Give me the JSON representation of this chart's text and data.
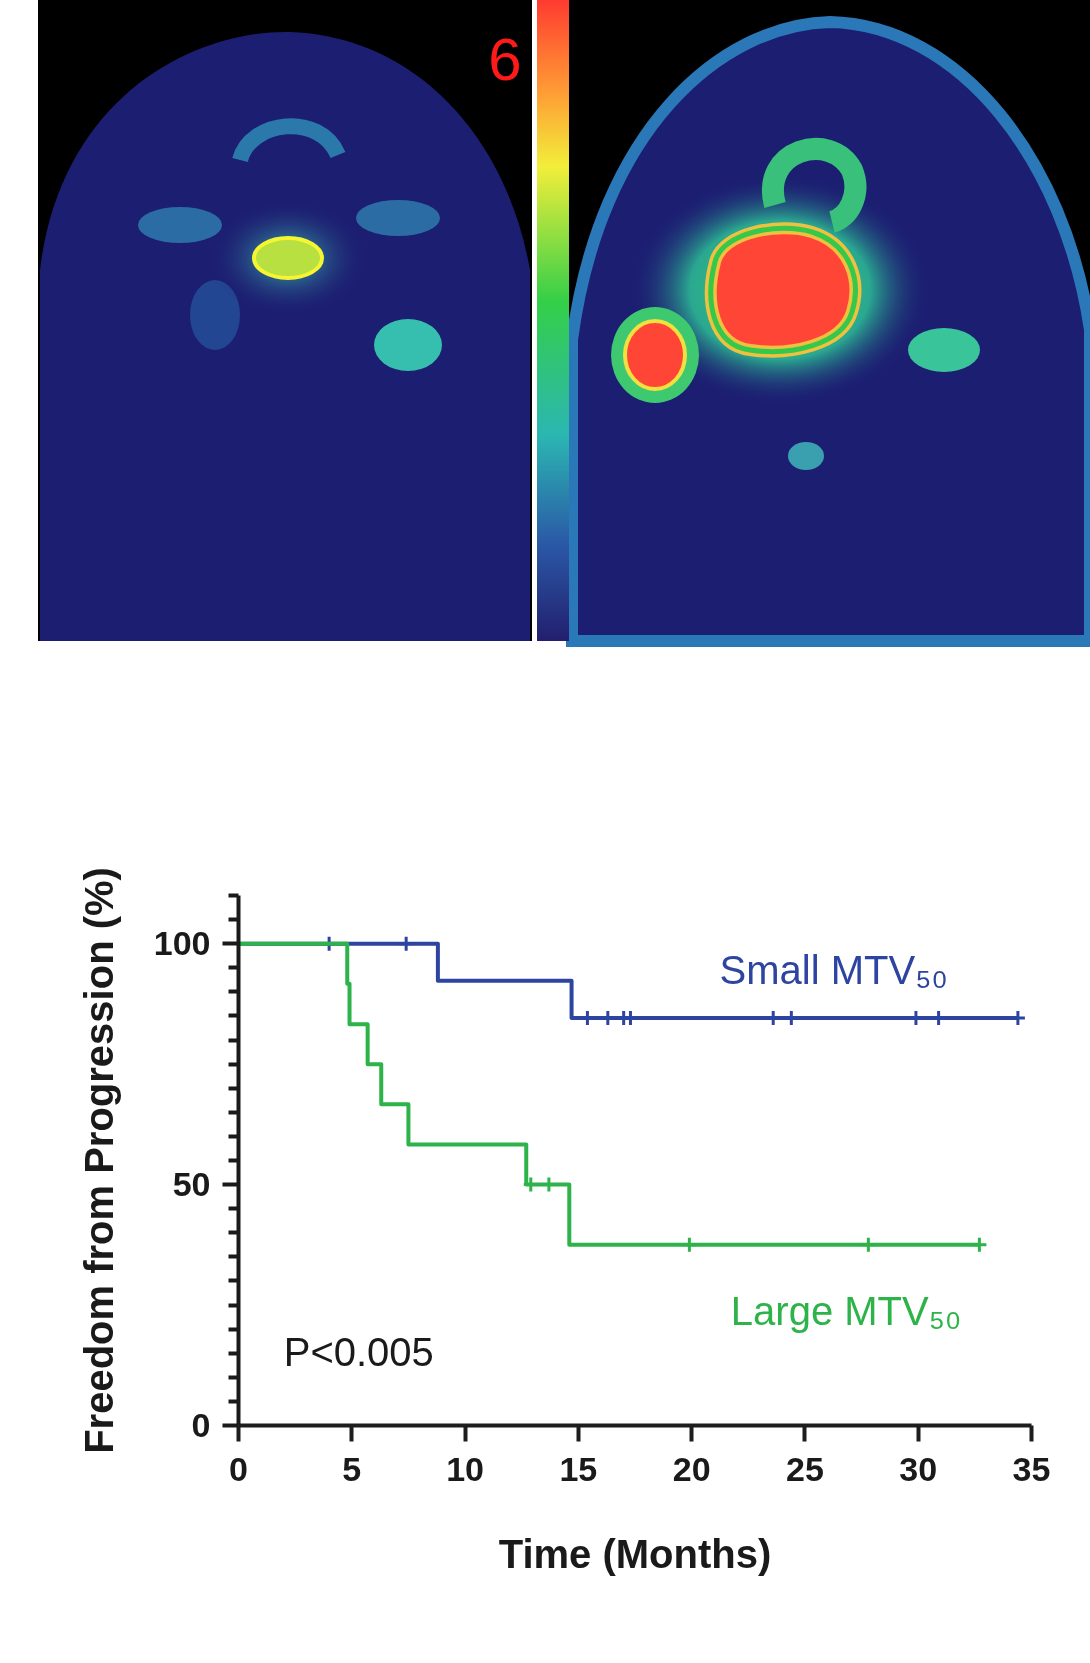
{
  "chart_data": {
    "type": "step",
    "xlabel": "Time (Months)",
    "ylabel": "Freedom from Progression (%)",
    "annotations": [
      "P<0.005",
      "6"
    ],
    "xlim": [
      0,
      35
    ],
    "xticks": [
      0,
      5,
      10,
      15,
      20,
      25,
      30,
      35
    ],
    "ylim": [
      0,
      110
    ],
    "yticks": [
      0,
      {
        "value": 5,
        "label": null
      },
      {
        "value": 10,
        "label": null
      },
      {
        "value": 15,
        "label": null
      },
      {
        "value": 20,
        "label": null
      },
      {
        "value": 25,
        "label": null
      },
      {
        "value": 30,
        "label": null
      },
      {
        "value": 35,
        "label": null
      },
      {
        "value": 40,
        "label": null
      },
      {
        "value": 45,
        "label": null
      },
      50,
      {
        "value": 55,
        "label": null
      },
      {
        "value": 60,
        "label": null
      },
      {
        "value": 65,
        "label": null
      },
      {
        "value": 70,
        "label": null
      },
      {
        "value": 75,
        "label": null
      },
      {
        "value": 80,
        "label": null
      },
      {
        "value": 85,
        "label": null
      },
      {
        "value": 90,
        "label": null
      },
      {
        "value": 95,
        "label": null
      },
      100,
      {
        "value": 105,
        "label": null
      },
      {
        "value": 110,
        "label": null
      }
    ],
    "grid": false,
    "series": [
      {
        "name": "Small MTV₅₀",
        "color": "#2d44a0",
        "x": [
          0,
          8.8,
          14.7,
          34.4
        ],
        "values": [
          100,
          92.3,
          84.6,
          84.6
        ]
      },
      {
        "type": "scatter",
        "marker": "cross",
        "color": "#2d44a0",
        "x": [
          4.0,
          7.4,
          15.4,
          16.3,
          17.0,
          17.3,
          23.6,
          24.4,
          29.9,
          30.9,
          34.4
        ],
        "values": [
          100,
          100,
          84.6,
          84.6,
          84.6,
          84.6,
          84.6,
          84.6,
          84.6,
          84.6,
          84.6
        ]
      },
      {
        "name": "Large MTV₅₀",
        "color": "#2db34a",
        "x": [
          0,
          4.8,
          4.9,
          5.7,
          6.3,
          7.5,
          12.7,
          14.6,
          32.7
        ],
        "values": [
          100,
          91.7,
          83.3,
          75,
          66.7,
          58.3,
          50,
          37.5,
          37.5
        ]
      },
      {
        "type": "scatter",
        "marker": "cross",
        "color": "#2db34a",
        "x": [
          12.9,
          13.7,
          19.9,
          27.8,
          32.7
        ],
        "values": [
          50,
          50,
          37.5,
          37.5,
          37.5
        ]
      }
    ]
  }
}
